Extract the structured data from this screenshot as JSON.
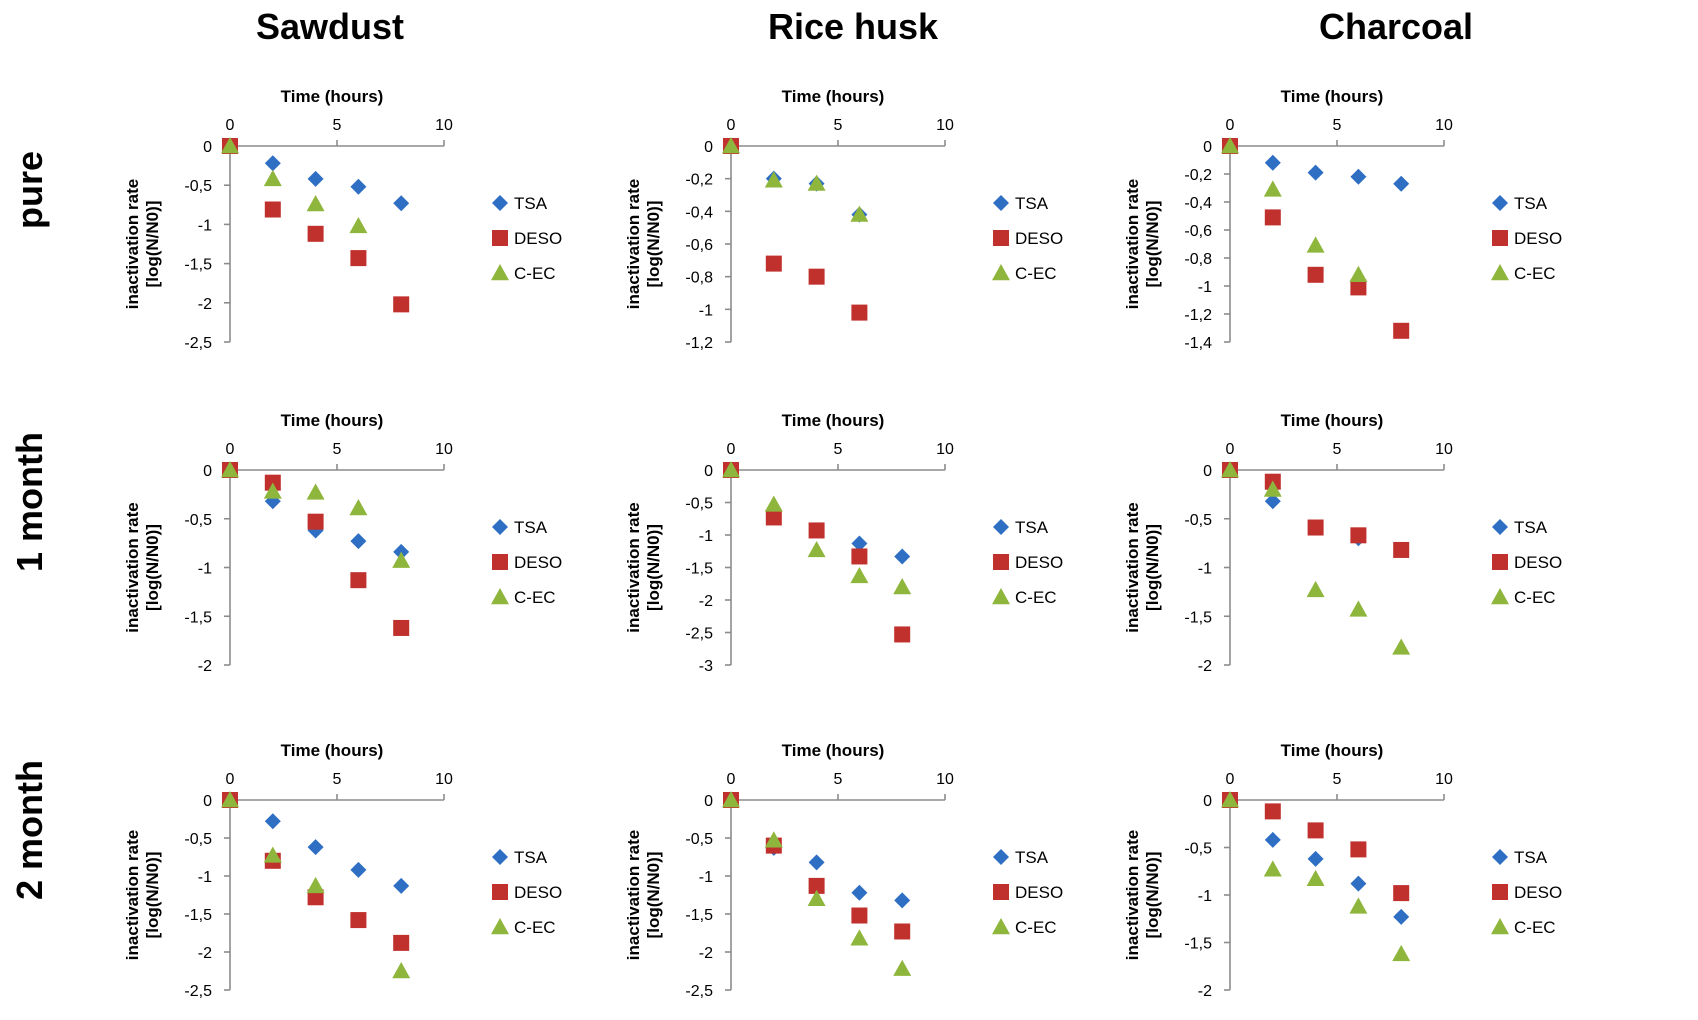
{
  "column_titles": [
    "Sawdust",
    "Rice husk",
    "Charcoal"
  ],
  "row_titles": [
    "pure",
    "1 month",
    "2 month"
  ],
  "colors": {
    "TSA": "#2E6FC4",
    "DESO": "#C0302D",
    "C-EC": "#8FB63C",
    "axis": "#8c8c8c"
  },
  "chart_data": [
    {
      "type": "scatter",
      "panel": "Sawdust / pure",
      "xlabel": "Time (hours)",
      "ylabel": "inactivation rate [log(N/N0)]",
      "xlim": [
        0,
        10
      ],
      "ylim": [
        -2.5,
        0
      ],
      "xticks": [
        0,
        5,
        10
      ],
      "yticks": [
        0,
        -0.5,
        -1,
        -1.5,
        -2,
        -2.5
      ],
      "legend": "right",
      "series": [
        {
          "name": "TSA",
          "x": [
            0,
            2,
            4,
            6,
            8
          ],
          "y": [
            0,
            -0.22,
            -0.42,
            -0.52,
            -0.73
          ]
        },
        {
          "name": "DESO",
          "x": [
            0,
            2,
            4,
            6,
            8
          ],
          "y": [
            0,
            -0.81,
            -1.12,
            -1.43,
            -2.02
          ]
        },
        {
          "name": "C-EC",
          "x": [
            0,
            2,
            4,
            6,
            8
          ],
          "y": [
            0,
            -0.42,
            -0.74,
            -1.02,
            null
          ]
        }
      ]
    },
    {
      "type": "scatter",
      "panel": "Rice husk / pure",
      "xlabel": "Time (hours)",
      "ylabel": "inactivation rate [log(N/N0)]",
      "xlim": [
        0,
        10
      ],
      "ylim": [
        -1.2,
        0
      ],
      "xticks": [
        0,
        5,
        10
      ],
      "yticks": [
        0,
        -0.2,
        -0.4,
        -0.6,
        -0.8,
        -1,
        -1.2
      ],
      "legend": "right",
      "series": [
        {
          "name": "TSA",
          "x": [
            0,
            2,
            4,
            6
          ],
          "y": [
            0,
            -0.2,
            -0.23,
            -0.42
          ]
        },
        {
          "name": "DESO",
          "x": [
            0,
            2,
            4,
            6
          ],
          "y": [
            0,
            -0.72,
            -0.8,
            -1.02
          ]
        },
        {
          "name": "C-EC",
          "x": [
            0,
            2,
            4,
            6
          ],
          "y": [
            0,
            -0.21,
            -0.23,
            -0.42
          ]
        }
      ]
    },
    {
      "type": "scatter",
      "panel": "Charcoal / pure",
      "xlabel": "Time (hours)",
      "ylabel": "inactivation rate [log(N/N0)]",
      "xlim": [
        0,
        10
      ],
      "ylim": [
        -1.4,
        0
      ],
      "xticks": [
        0,
        5,
        10
      ],
      "yticks": [
        0,
        -0.2,
        -0.4,
        -0.6,
        -0.8,
        -1,
        -1.2,
        -1.4
      ],
      "legend": "right",
      "series": [
        {
          "name": "TSA",
          "x": [
            0,
            2,
            4,
            6,
            8
          ],
          "y": [
            0,
            -0.12,
            -0.19,
            -0.22,
            -0.27
          ]
        },
        {
          "name": "DESO",
          "x": [
            0,
            2,
            4,
            6,
            8
          ],
          "y": [
            0,
            -0.51,
            -0.92,
            -1.01,
            -1.32
          ]
        },
        {
          "name": "C-EC",
          "x": [
            0,
            2,
            4,
            6,
            8
          ],
          "y": [
            0,
            -0.31,
            -0.71,
            -0.92,
            null
          ]
        }
      ]
    },
    {
      "type": "scatter",
      "panel": "Sawdust / 1 month",
      "xlabel": "Time (hours)",
      "ylabel": "inactivation rate [log(N/N0)]",
      "xlim": [
        0,
        10
      ],
      "ylim": [
        -2,
        0
      ],
      "xticks": [
        0,
        5,
        10
      ],
      "yticks": [
        0,
        -0.5,
        -1,
        -1.5,
        -2
      ],
      "legend": "right",
      "series": [
        {
          "name": "TSA",
          "x": [
            0,
            2,
            4,
            6,
            8
          ],
          "y": [
            0,
            -0.32,
            -0.62,
            -0.73,
            -0.84
          ]
        },
        {
          "name": "DESO",
          "x": [
            0,
            2,
            4,
            6,
            8
          ],
          "y": [
            0,
            -0.13,
            -0.53,
            -1.13,
            -1.62
          ]
        },
        {
          "name": "C-EC",
          "x": [
            0,
            2,
            4,
            6,
            8
          ],
          "y": [
            0,
            -0.22,
            -0.23,
            -0.39,
            -0.93
          ]
        }
      ]
    },
    {
      "type": "scatter",
      "panel": "Rice husk / 1 month",
      "xlabel": "Time (hours)",
      "ylabel": "inactivation rate [log(N/N0)]",
      "xlim": [
        0,
        10
      ],
      "ylim": [
        -3,
        0
      ],
      "xticks": [
        0,
        5,
        10
      ],
      "yticks": [
        0,
        -0.5,
        -1,
        -1.5,
        -2,
        -2.5,
        -3
      ],
      "legend": "right",
      "series": [
        {
          "name": "TSA",
          "x": [
            0,
            2,
            4,
            6,
            8
          ],
          "y": [
            0,
            null,
            null,
            -1.13,
            -1.33
          ]
        },
        {
          "name": "DESO",
          "x": [
            0,
            2,
            4,
            6,
            8
          ],
          "y": [
            0,
            -0.73,
            -0.93,
            -1.33,
            -2.53
          ]
        },
        {
          "name": "C-EC",
          "x": [
            0,
            2,
            4,
            6,
            8
          ],
          "y": [
            0,
            -0.53,
            -1.23,
            -1.63,
            -1.8
          ]
        }
      ]
    },
    {
      "type": "scatter",
      "panel": "Charcoal / 1 month",
      "xlabel": "Time (hours)",
      "ylabel": "inactivation rate [log(N/N0)]",
      "xlim": [
        0,
        10
      ],
      "ylim": [
        -2,
        0
      ],
      "xticks": [
        0,
        5,
        10
      ],
      "yticks": [
        0,
        -0.5,
        -1,
        -1.5,
        -2
      ],
      "legend": "right",
      "series": [
        {
          "name": "TSA",
          "x": [
            0,
            2,
            4,
            6,
            8
          ],
          "y": [
            0,
            -0.32,
            null,
            -0.7,
            null
          ]
        },
        {
          "name": "DESO",
          "x": [
            0,
            2,
            4,
            6,
            8
          ],
          "y": [
            0,
            -0.12,
            -0.59,
            -0.67,
            -0.82
          ]
        },
        {
          "name": "C-EC",
          "x": [
            0,
            2,
            4,
            6,
            8
          ],
          "y": [
            0,
            -0.2,
            -1.23,
            -1.43,
            -1.82
          ]
        }
      ]
    },
    {
      "type": "scatter",
      "panel": "Sawdust / 2 month",
      "xlabel": "Time (hours)",
      "ylabel": "inactivation rate [log(N/N0)]",
      "xlim": [
        0,
        10
      ],
      "ylim": [
        -2.5,
        0
      ],
      "xticks": [
        0,
        5,
        10
      ],
      "yticks": [
        0,
        -0.5,
        -1,
        -1.5,
        -2,
        -2.5
      ],
      "legend": "right",
      "series": [
        {
          "name": "TSA",
          "x": [
            0,
            2,
            4,
            6,
            8
          ],
          "y": [
            0,
            -0.28,
            -0.62,
            -0.92,
            -1.13
          ]
        },
        {
          "name": "DESO",
          "x": [
            0,
            2,
            4,
            6,
            8
          ],
          "y": [
            0,
            -0.8,
            -1.28,
            -1.58,
            -1.88
          ]
        },
        {
          "name": "C-EC",
          "x": [
            0,
            2,
            4,
            6,
            8
          ],
          "y": [
            0,
            -0.73,
            -1.13,
            null,
            -2.25
          ]
        }
      ]
    },
    {
      "type": "scatter",
      "panel": "Rice husk / 2 month",
      "xlabel": "Time (hours)",
      "ylabel": "inactivation rate [log(N/N0)]",
      "xlim": [
        0,
        10
      ],
      "ylim": [
        -2.5,
        0
      ],
      "xticks": [
        0,
        5,
        10
      ],
      "yticks": [
        0,
        -0.5,
        -1,
        -1.5,
        -2,
        -2.5
      ],
      "legend": "right",
      "series": [
        {
          "name": "TSA",
          "x": [
            0,
            2,
            4,
            6,
            8
          ],
          "y": [
            0,
            -0.63,
            -0.82,
            -1.22,
            -1.32
          ]
        },
        {
          "name": "DESO",
          "x": [
            0,
            2,
            4,
            6,
            8
          ],
          "y": [
            0,
            -0.6,
            -1.13,
            -1.52,
            -1.73
          ]
        },
        {
          "name": "C-EC",
          "x": [
            0,
            2,
            4,
            6,
            8
          ],
          "y": [
            0,
            -0.53,
            -1.3,
            -1.82,
            -2.22
          ]
        }
      ]
    },
    {
      "type": "scatter",
      "panel": "Charcoal / 2 month",
      "xlabel": "Time (hours)",
      "ylabel": "inactivation rate [log(N/N0)]",
      "xlim": [
        0,
        10
      ],
      "ylim": [
        -2,
        0
      ],
      "xticks": [
        0,
        5,
        10
      ],
      "yticks": [
        0,
        -0.5,
        -1,
        -1.5,
        -2
      ],
      "legend": "right",
      "series": [
        {
          "name": "TSA",
          "x": [
            0,
            2,
            4,
            6,
            8
          ],
          "y": [
            0,
            -0.42,
            -0.62,
            -0.88,
            -1.23
          ]
        },
        {
          "name": "DESO",
          "x": [
            0,
            2,
            4,
            6,
            8
          ],
          "y": [
            0,
            -0.12,
            -0.32,
            -0.52,
            -0.98
          ]
        },
        {
          "name": "C-EC",
          "x": [
            0,
            2,
            4,
            6,
            8
          ],
          "y": [
            0,
            -0.73,
            -0.83,
            -1.12,
            -1.62
          ]
        }
      ]
    }
  ]
}
